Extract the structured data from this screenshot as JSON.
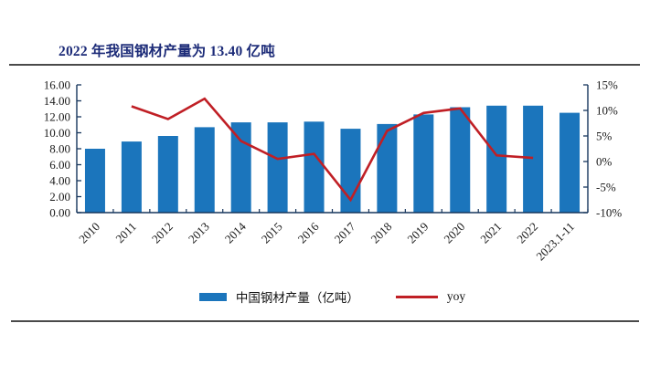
{
  "header": {
    "title": "2022 年我国钢材产量为 13.40 亿吨"
  },
  "colors": {
    "bar": "#1b75bc",
    "line": "#c01f25",
    "title_text": "#1c2b78",
    "axis": "#17365d",
    "rule": "#4a4a4a"
  },
  "chart_data": {
    "type": "bar",
    "title": "2022 年我国钢材产量为 13.40 亿吨",
    "categories": [
      "2010",
      "2011",
      "2012",
      "2013",
      "2014",
      "2015",
      "2016",
      "2017",
      "2018",
      "2019",
      "2020",
      "2021",
      "2022",
      "2023.1-11"
    ],
    "series": [
      {
        "name": "中国钢材产量（亿吨）",
        "type": "bar",
        "axis": "left",
        "color": "#1b75bc",
        "values": [
          8.0,
          8.9,
          9.6,
          10.7,
          11.3,
          11.3,
          11.4,
          10.5,
          11.1,
          12.3,
          13.2,
          13.4,
          13.4,
          12.5
        ]
      },
      {
        "name": "yoy",
        "type": "line",
        "axis": "right",
        "color": "#c01f25",
        "values": [
          null,
          10.8,
          8.3,
          12.3,
          4.0,
          0.5,
          1.5,
          -7.5,
          6.0,
          9.5,
          10.4,
          1.2,
          0.7,
          null
        ]
      }
    ],
    "y_left": {
      "min": 0,
      "max": 16,
      "step": 2,
      "labels": [
        "0.00",
        "2.00",
        "4.00",
        "6.00",
        "8.00",
        "10.00",
        "12.00",
        "14.00",
        "16.00"
      ]
    },
    "y_right": {
      "min": -10,
      "max": 15,
      "step": 5,
      "labels": [
        "-10%",
        "-5%",
        "0%",
        "5%",
        "10%",
        "15%"
      ]
    },
    "grid": "off",
    "legend_position": "bottom"
  }
}
